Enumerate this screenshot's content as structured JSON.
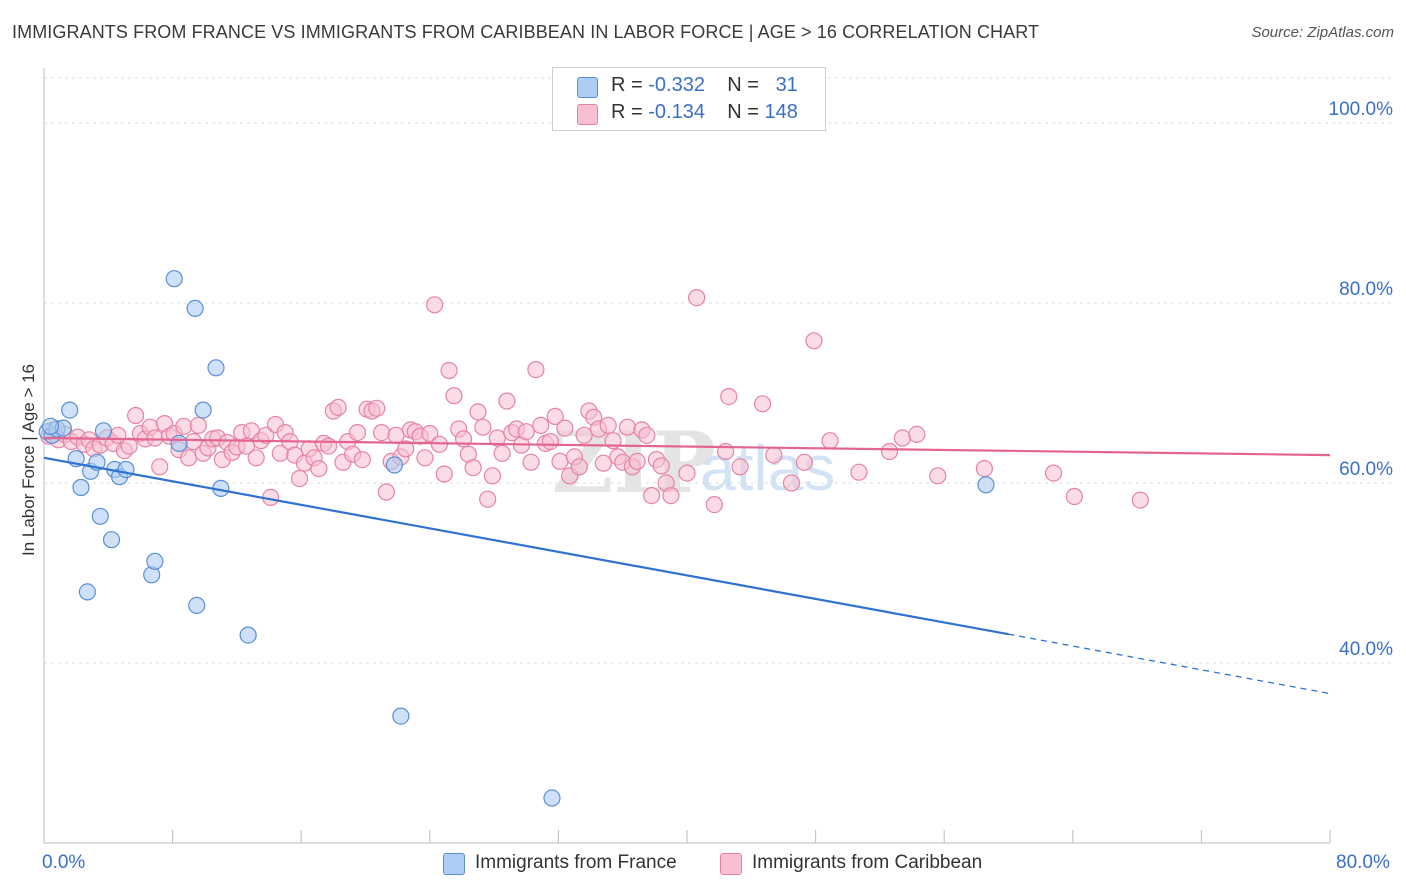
{
  "title": "IMMIGRANTS FROM FRANCE VS IMMIGRANTS FROM CARIBBEAN IN LABOR FORCE | AGE > 16 CORRELATION CHART",
  "source": "Source: ZipAtlas.com",
  "watermark": "ZIPatlas",
  "legend": {
    "france": {
      "r_label": "R =",
      "r_value": "-0.332",
      "n_label": "N =",
      "n_value": "31"
    },
    "caribbean": {
      "r_label": "R =",
      "r_value": "-0.134",
      "n_label": "N =",
      "n_value": "148"
    }
  },
  "bottom_legend": {
    "france": "Immigrants from France",
    "caribbean": "Immigrants from Caribbean"
  },
  "x_axis": {
    "min_label": "0.0%",
    "max_label": "80.0%"
  },
  "colors": {
    "france_fill": "#aecdf4",
    "france_stroke": "#5a8fd6",
    "france_line": "#2f72d1",
    "caribbean_fill": "#f7bfd0",
    "caribbean_stroke": "#e683a4",
    "caribbean_line": "#e3648f",
    "accent_text": "#3a6fc9",
    "grid": "#dcdcdc"
  },
  "chart_data": {
    "type": "scatter",
    "title": "IMMIGRANTS FROM FRANCE VS IMMIGRANTS FROM CARIBBEAN IN LABOR FORCE | AGE > 16 CORRELATION CHART",
    "xlabel": "",
    "ylabel": "In Labor Force | Age > 16",
    "xlim": [
      0,
      80
    ],
    "ylim": [
      20,
      105
    ],
    "y_ticks": [
      40,
      60,
      80,
      100
    ],
    "y_tick_labels": [
      "40.0%",
      "60.0%",
      "80.0%",
      "100.0%"
    ],
    "x_tick_labels": [
      "0.0%",
      "80.0%"
    ],
    "grid": true,
    "series": [
      {
        "name": "Immigrants from France",
        "r": -0.332,
        "n": 31,
        "trend": {
          "x0": 0,
          "y0": 62.8,
          "x1": 60,
          "y1": 43.2,
          "dashed_to_x": 80,
          "dashed_to_y": 36.6
        },
        "points": [
          [
            0.2,
            65.7
          ],
          [
            0.5,
            65.3
          ],
          [
            0.8,
            66.0
          ],
          [
            1.2,
            66.1
          ],
          [
            1.6,
            68.1
          ],
          [
            2.0,
            62.7
          ],
          [
            2.3,
            59.5
          ],
          [
            2.7,
            47.9
          ],
          [
            2.9,
            61.3
          ],
          [
            3.3,
            62.3
          ],
          [
            3.5,
            56.3
          ],
          [
            3.7,
            65.8
          ],
          [
            4.2,
            53.7
          ],
          [
            4.4,
            61.5
          ],
          [
            4.7,
            60.7
          ],
          [
            5.1,
            61.5
          ],
          [
            6.7,
            49.8
          ],
          [
            6.9,
            51.3
          ],
          [
            8.1,
            82.7
          ],
          [
            8.4,
            64.4
          ],
          [
            9.4,
            79.4
          ],
          [
            9.5,
            46.4
          ],
          [
            9.9,
            68.1
          ],
          [
            10.7,
            72.8
          ],
          [
            11.0,
            59.4
          ],
          [
            12.7,
            43.1
          ],
          [
            22.2,
            34.1
          ],
          [
            21.8,
            62.0
          ],
          [
            31.6,
            25.0
          ],
          [
            58.6,
            59.8
          ],
          [
            0.4,
            66.3
          ]
        ]
      },
      {
        "name": "Immigrants from Caribbean",
        "r": -0.134,
        "n": 148,
        "trend": {
          "x0": 0,
          "y0": 65.0,
          "x1": 80,
          "y1": 63.1
        },
        "points": [
          [
            0.3,
            65.2
          ],
          [
            0.6,
            65.9
          ],
          [
            0.9,
            64.8
          ],
          [
            1.3,
            65.4
          ],
          [
            1.7,
            64.6
          ],
          [
            2.1,
            65.1
          ],
          [
            2.5,
            64.3
          ],
          [
            2.8,
            64.8
          ],
          [
            3.1,
            63.8
          ],
          [
            3.5,
            64.2
          ],
          [
            3.9,
            65.0
          ],
          [
            4.3,
            64.4
          ],
          [
            4.6,
            65.3
          ],
          [
            5.0,
            63.6
          ],
          [
            5.3,
            64.1
          ],
          [
            5.7,
            67.5
          ],
          [
            6.0,
            65.5
          ],
          [
            6.3,
            64.9
          ],
          [
            6.6,
            66.2
          ],
          [
            6.9,
            65.0
          ],
          [
            7.2,
            61.8
          ],
          [
            7.5,
            66.6
          ],
          [
            7.8,
            65.2
          ],
          [
            8.1,
            65.5
          ],
          [
            8.4,
            63.7
          ],
          [
            8.7,
            66.3
          ],
          [
            9.0,
            62.8
          ],
          [
            9.3,
            64.6
          ],
          [
            9.6,
            66.4
          ],
          [
            9.9,
            63.3
          ],
          [
            10.2,
            63.9
          ],
          [
            10.5,
            64.9
          ],
          [
            10.8,
            65.0
          ],
          [
            11.1,
            62.6
          ],
          [
            11.4,
            64.5
          ],
          [
            11.7,
            63.4
          ],
          [
            12.0,
            64.0
          ],
          [
            12.3,
            65.6
          ],
          [
            12.6,
            64.1
          ],
          [
            12.9,
            65.8
          ],
          [
            13.2,
            62.8
          ],
          [
            13.5,
            64.7
          ],
          [
            13.8,
            65.3
          ],
          [
            14.1,
            58.4
          ],
          [
            14.4,
            66.5
          ],
          [
            14.7,
            63.3
          ],
          [
            15.0,
            65.6
          ],
          [
            15.3,
            64.6
          ],
          [
            15.6,
            63.1
          ],
          [
            15.9,
            60.5
          ],
          [
            16.2,
            62.2
          ],
          [
            16.5,
            63.8
          ],
          [
            16.8,
            62.8
          ],
          [
            17.1,
            61.6
          ],
          [
            17.4,
            64.4
          ],
          [
            17.7,
            64.1
          ],
          [
            18.0,
            68.0
          ],
          [
            18.3,
            68.4
          ],
          [
            18.6,
            62.3
          ],
          [
            18.9,
            64.6
          ],
          [
            19.2,
            63.2
          ],
          [
            19.5,
            65.6
          ],
          [
            19.8,
            62.6
          ],
          [
            20.1,
            68.2
          ],
          [
            20.4,
            68.0
          ],
          [
            20.7,
            68.3
          ],
          [
            21.0,
            65.6
          ],
          [
            21.3,
            59.0
          ],
          [
            21.6,
            62.4
          ],
          [
            21.9,
            65.3
          ],
          [
            22.2,
            62.9
          ],
          [
            22.5,
            63.8
          ],
          [
            22.8,
            65.9
          ],
          [
            23.1,
            65.7
          ],
          [
            23.4,
            65.2
          ],
          [
            23.7,
            62.8
          ],
          [
            24.0,
            65.5
          ],
          [
            24.3,
            79.8
          ],
          [
            24.6,
            64.3
          ],
          [
            24.9,
            61.0
          ],
          [
            25.2,
            72.5
          ],
          [
            25.5,
            69.7
          ],
          [
            25.8,
            66.0
          ],
          [
            26.1,
            64.9
          ],
          [
            26.4,
            63.2
          ],
          [
            26.7,
            61.7
          ],
          [
            27.0,
            67.9
          ],
          [
            27.3,
            66.2
          ],
          [
            27.6,
            58.2
          ],
          [
            27.9,
            60.8
          ],
          [
            28.2,
            65.0
          ],
          [
            28.5,
            63.3
          ],
          [
            28.8,
            69.1
          ],
          [
            29.1,
            65.6
          ],
          [
            29.4,
            66.0
          ],
          [
            29.7,
            64.2
          ],
          [
            30.0,
            65.7
          ],
          [
            30.3,
            62.3
          ],
          [
            30.6,
            72.6
          ],
          [
            30.9,
            66.4
          ],
          [
            31.2,
            64.4
          ],
          [
            31.5,
            64.6
          ],
          [
            31.8,
            67.4
          ],
          [
            32.1,
            62.4
          ],
          [
            32.4,
            66.1
          ],
          [
            32.7,
            60.8
          ],
          [
            33.0,
            62.9
          ],
          [
            33.3,
            61.8
          ],
          [
            33.6,
            65.3
          ],
          [
            33.9,
            68.0
          ],
          [
            34.2,
            67.3
          ],
          [
            34.5,
            66.0
          ],
          [
            34.8,
            62.2
          ],
          [
            35.1,
            66.4
          ],
          [
            35.4,
            64.7
          ],
          [
            35.7,
            62.9
          ],
          [
            36.0,
            62.3
          ],
          [
            36.3,
            66.2
          ],
          [
            36.6,
            61.8
          ],
          [
            36.9,
            62.4
          ],
          [
            37.2,
            65.9
          ],
          [
            37.5,
            65.3
          ],
          [
            37.8,
            58.6
          ],
          [
            38.1,
            62.6
          ],
          [
            38.4,
            61.9
          ],
          [
            38.7,
            60.0
          ],
          [
            39.0,
            58.6
          ],
          [
            40.0,
            61.1
          ],
          [
            40.6,
            80.6
          ],
          [
            41.7,
            57.6
          ],
          [
            42.4,
            63.5
          ],
          [
            42.6,
            69.6
          ],
          [
            43.3,
            61.8
          ],
          [
            44.7,
            68.8
          ],
          [
            45.4,
            63.1
          ],
          [
            46.5,
            60.0
          ],
          [
            47.3,
            62.3
          ],
          [
            47.9,
            75.8
          ],
          [
            48.9,
            64.7
          ],
          [
            50.7,
            61.2
          ],
          [
            52.6,
            63.5
          ],
          [
            53.4,
            65.0
          ],
          [
            54.3,
            65.4
          ],
          [
            55.6,
            60.8
          ],
          [
            58.5,
            61.6
          ],
          [
            62.8,
            61.1
          ],
          [
            64.1,
            58.5
          ],
          [
            68.2,
            58.1
          ]
        ]
      }
    ]
  }
}
